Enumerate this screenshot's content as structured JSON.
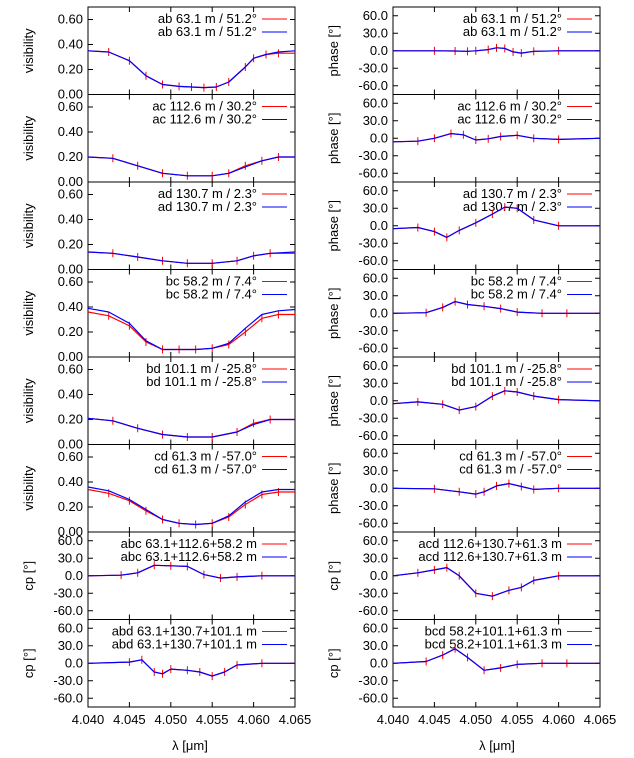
{
  "x_axis": {
    "label": "λ [μm]",
    "min": 4.04,
    "max": 4.065,
    "ticks": [
      "4.040",
      "4.045",
      "4.050",
      "4.055",
      "4.060",
      "4.065"
    ]
  },
  "y_axes": {
    "visibility": {
      "label": "visibility",
      "min": 0,
      "max": 0.7,
      "ticks": [
        "0.00",
        "0.20",
        "0.40",
        "0.60"
      ]
    },
    "phase": {
      "label": "phase [°]",
      "min": -75,
      "max": 75,
      "ticks": [
        "-60.0",
        "-30.0",
        "0.0",
        "30.0",
        "60.0"
      ]
    },
    "cp": {
      "label": "cp [°]",
      "min": -75,
      "max": 75,
      "ticks": [
        "-60.0",
        "-30.0",
        "0.0",
        "30.0",
        "60.0"
      ]
    }
  },
  "colors": {
    "observed": "#ff0000",
    "model": "#0000ff"
  },
  "chart_data": [
    {
      "type": "line",
      "panel": "vis-ab",
      "y_axis": "visibility",
      "legend": [
        "ab 63.1 m / 51.2°",
        "ab 63.1 m / 51.2°"
      ],
      "x": [
        4.04,
        4.0425,
        4.045,
        4.047,
        4.049,
        4.051,
        4.0525,
        4.054,
        4.0555,
        4.057,
        4.059,
        4.06,
        4.0615,
        4.063,
        4.065
      ],
      "series": [
        {
          "values": [
            0.35,
            0.34,
            0.27,
            0.15,
            0.08,
            0.065,
            0.06,
            0.055,
            0.06,
            0.1,
            0.22,
            0.29,
            0.32,
            0.33,
            0.33
          ]
        },
        {
          "values": [
            0.35,
            0.34,
            0.27,
            0.15,
            0.08,
            0.065,
            0.06,
            0.055,
            0.06,
            0.1,
            0.22,
            0.29,
            0.32,
            0.34,
            0.35
          ]
        }
      ]
    },
    {
      "type": "line",
      "panel": "phase-ab",
      "y_axis": "phase",
      "legend": [
        "ab 63.1 m / 51.2°",
        "ab 63.1 m / 51.2°"
      ],
      "x": [
        4.04,
        4.045,
        4.0475,
        4.049,
        4.05,
        4.0515,
        4.0525,
        4.0535,
        4.0545,
        4.0555,
        4.057,
        4.06,
        4.065
      ],
      "series": [
        {
          "values": [
            0,
            0,
            -0.5,
            -1,
            0,
            2,
            5,
            4,
            -2,
            -4,
            -1,
            0,
            0
          ]
        },
        {
          "values": [
            0,
            0,
            -0.5,
            -1,
            0,
            2,
            5,
            4,
            -2,
            -4,
            -1,
            0,
            0
          ]
        }
      ]
    },
    {
      "type": "line",
      "panel": "vis-ac",
      "y_axis": "visibility",
      "legend": [
        "ac 112.6 m / 30.2°",
        "ac 112.6 m / 30.2°"
      ],
      "x": [
        4.04,
        4.043,
        4.046,
        4.049,
        4.052,
        4.055,
        4.057,
        4.059,
        4.061,
        4.063,
        4.065
      ],
      "series": [
        {
          "values": [
            0.2,
            0.19,
            0.13,
            0.07,
            0.05,
            0.05,
            0.07,
            0.13,
            0.17,
            0.2,
            0.2
          ]
        },
        {
          "values": [
            0.2,
            0.19,
            0.13,
            0.07,
            0.05,
            0.05,
            0.07,
            0.12,
            0.17,
            0.2,
            0.2
          ]
        }
      ]
    },
    {
      "type": "line",
      "panel": "phase-ac",
      "y_axis": "phase",
      "legend": [
        "ac 112.6 m / 30.2°",
        "ac 112.6 m / 30.2°"
      ],
      "x": [
        4.04,
        4.043,
        4.045,
        4.047,
        4.0485,
        4.05,
        4.0515,
        4.053,
        4.055,
        4.057,
        4.06,
        4.065
      ],
      "series": [
        {
          "values": [
            -6,
            -5,
            0,
            8,
            6,
            -3,
            -1,
            3,
            5,
            0,
            -2,
            0
          ]
        },
        {
          "values": [
            -6,
            -5,
            0,
            8,
            6,
            -3,
            -1,
            3,
            5,
            0,
            -2,
            0
          ]
        }
      ]
    },
    {
      "type": "line",
      "panel": "vis-ad",
      "y_axis": "visibility",
      "legend": [
        "ad 130.7 m / 2.3°",
        "ad 130.7 m / 2.3°"
      ],
      "x": [
        4.04,
        4.043,
        4.046,
        4.049,
        4.052,
        4.055,
        4.058,
        4.06,
        4.062,
        4.065
      ],
      "series": [
        {
          "values": [
            0.14,
            0.13,
            0.1,
            0.07,
            0.05,
            0.05,
            0.07,
            0.11,
            0.13,
            0.13
          ]
        },
        {
          "values": [
            0.14,
            0.13,
            0.1,
            0.07,
            0.05,
            0.05,
            0.07,
            0.11,
            0.13,
            0.14
          ]
        }
      ]
    },
    {
      "type": "line",
      "panel": "phase-ad",
      "y_axis": "phase",
      "legend": [
        "ad 130.7 m / 2.3°",
        "ad 130.7 m / 2.3°"
      ],
      "x": [
        4.04,
        4.043,
        4.045,
        4.0465,
        4.048,
        4.05,
        4.052,
        4.0535,
        4.055,
        4.057,
        4.06,
        4.065
      ],
      "series": [
        {
          "values": [
            -5,
            -3,
            -10,
            -20,
            -8,
            5,
            20,
            32,
            30,
            10,
            0,
            0
          ]
        },
        {
          "values": [
            -5,
            -3,
            -10,
            -20,
            -8,
            5,
            20,
            32,
            30,
            10,
            0,
            0
          ]
        }
      ]
    },
    {
      "type": "line",
      "panel": "vis-bc",
      "y_axis": "visibility",
      "legend": [
        "bc 58.2 m / 7.4°",
        "bc 58.2 m / 7.4°"
      ],
      "x": [
        4.04,
        4.0425,
        4.045,
        4.047,
        4.049,
        4.051,
        4.053,
        4.055,
        4.057,
        4.059,
        4.061,
        4.063,
        4.065
      ],
      "series": [
        {
          "values": [
            0.36,
            0.33,
            0.25,
            0.12,
            0.06,
            0.06,
            0.06,
            0.07,
            0.1,
            0.2,
            0.31,
            0.34,
            0.34
          ]
        },
        {
          "values": [
            0.39,
            0.36,
            0.27,
            0.13,
            0.06,
            0.06,
            0.06,
            0.07,
            0.11,
            0.23,
            0.34,
            0.37,
            0.38
          ]
        }
      ]
    },
    {
      "type": "line",
      "panel": "phase-bc",
      "y_axis": "phase",
      "legend": [
        "bc 58.2 m / 7.4°",
        "bc 58.2 m / 7.4°"
      ],
      "x": [
        4.04,
        4.044,
        4.046,
        4.0475,
        4.049,
        4.051,
        4.053,
        4.055,
        4.058,
        4.061,
        4.065
      ],
      "series": [
        {
          "values": [
            0,
            1,
            10,
            20,
            15,
            12,
            8,
            2,
            0,
            0,
            0
          ]
        },
        {
          "values": [
            0,
            1,
            10,
            20,
            15,
            12,
            8,
            2,
            0,
            0,
            0
          ]
        }
      ]
    },
    {
      "type": "line",
      "panel": "vis-bd",
      "y_axis": "visibility",
      "legend": [
        "bd 101.1 m / -25.8°",
        "bd 101.1 m / -25.8°"
      ],
      "x": [
        4.04,
        4.043,
        4.046,
        4.049,
        4.052,
        4.055,
        4.058,
        4.06,
        4.062,
        4.065
      ],
      "series": [
        {
          "values": [
            0.21,
            0.19,
            0.13,
            0.08,
            0.06,
            0.06,
            0.1,
            0.17,
            0.2,
            0.2
          ]
        },
        {
          "values": [
            0.21,
            0.19,
            0.13,
            0.08,
            0.06,
            0.06,
            0.1,
            0.16,
            0.2,
            0.2
          ]
        }
      ]
    },
    {
      "type": "line",
      "panel": "phase-bd",
      "y_axis": "phase",
      "legend": [
        "bd 101.1 m / -25.8°",
        "bd 101.1 m / -25.8°"
      ],
      "x": [
        4.04,
        4.043,
        4.046,
        4.048,
        4.05,
        4.052,
        4.0535,
        4.055,
        4.057,
        4.06,
        4.065
      ],
      "series": [
        {
          "values": [
            -5,
            -2,
            -6,
            -16,
            -10,
            8,
            17,
            15,
            8,
            2,
            0
          ]
        },
        {
          "values": [
            -5,
            -2,
            -6,
            -16,
            -10,
            8,
            17,
            15,
            8,
            2,
            0
          ]
        }
      ]
    },
    {
      "type": "line",
      "panel": "vis-cd",
      "y_axis": "visibility",
      "legend": [
        "cd 61.3 m / -57.0°",
        "cd 61.3 m / -57.0°"
      ],
      "x": [
        4.04,
        4.0425,
        4.045,
        4.047,
        4.049,
        4.051,
        4.053,
        4.055,
        4.057,
        4.059,
        4.061,
        4.063,
        4.065
      ],
      "series": [
        {
          "values": [
            0.34,
            0.31,
            0.25,
            0.17,
            0.1,
            0.07,
            0.06,
            0.07,
            0.12,
            0.22,
            0.3,
            0.32,
            0.32
          ]
        },
        {
          "values": [
            0.36,
            0.33,
            0.26,
            0.18,
            0.1,
            0.07,
            0.06,
            0.07,
            0.13,
            0.24,
            0.32,
            0.34,
            0.34
          ]
        }
      ]
    },
    {
      "type": "line",
      "panel": "phase-cd",
      "y_axis": "phase",
      "legend": [
        "cd 61.3 m / -57.0°",
        "cd 61.3 m / -57.0°"
      ],
      "x": [
        4.04,
        4.045,
        4.048,
        4.05,
        4.051,
        4.0525,
        4.054,
        4.0555,
        4.057,
        4.06,
        4.065
      ],
      "series": [
        {
          "values": [
            0,
            -1,
            -6,
            -10,
            -6,
            4,
            8,
            3,
            -2,
            0,
            0
          ]
        },
        {
          "values": [
            0,
            -1,
            -6,
            -10,
            -6,
            4,
            8,
            3,
            -2,
            0,
            0
          ]
        }
      ]
    },
    {
      "type": "line",
      "panel": "cp-abc",
      "y_axis": "cp",
      "legend": [
        "abc 63.1+112.6+58.2 m",
        "abc 63.1+112.6+58.2 m"
      ],
      "x": [
        4.04,
        4.044,
        4.046,
        4.048,
        4.05,
        4.052,
        4.054,
        4.056,
        4.058,
        4.061,
        4.065
      ],
      "series": [
        {
          "values": [
            0,
            1,
            5,
            18,
            17,
            16,
            2,
            -4,
            -2,
            0,
            0
          ]
        },
        {
          "values": [
            0,
            1,
            5,
            18,
            17,
            16,
            2,
            -4,
            -2,
            0,
            0
          ]
        }
      ]
    },
    {
      "type": "line",
      "panel": "cp-acd",
      "y_axis": "cp",
      "legend": [
        "acd 112.6+130.7+61.3 m",
        "acd 112.6+130.7+61.3 m"
      ],
      "x": [
        4.04,
        4.043,
        4.045,
        4.0465,
        4.048,
        4.05,
        4.052,
        4.054,
        4.0555,
        4.057,
        4.06,
        4.065
      ],
      "series": [
        {
          "values": [
            0,
            5,
            10,
            14,
            0,
            -30,
            -35,
            -25,
            -20,
            -8,
            0,
            0
          ]
        },
        {
          "values": [
            0,
            5,
            10,
            14,
            0,
            -30,
            -35,
            -25,
            -20,
            -8,
            0,
            0
          ]
        }
      ]
    },
    {
      "type": "line",
      "panel": "cp-abd",
      "y_axis": "cp",
      "legend": [
        "abd 63.1+130.7+101.1 m",
        "abd 63.1+130.7+101.1 m"
      ],
      "x": [
        4.04,
        4.045,
        4.0465,
        4.048,
        4.049,
        4.05,
        4.052,
        4.0535,
        4.055,
        4.0565,
        4.058,
        4.061,
        4.065
      ],
      "series": [
        {
          "values": [
            0,
            2,
            6,
            -15,
            -18,
            -10,
            -12,
            -15,
            -22,
            -15,
            -3,
            0,
            0
          ]
        },
        {
          "values": [
            0,
            2,
            6,
            -15,
            -18,
            -10,
            -12,
            -15,
            -22,
            -15,
            -3,
            0,
            0
          ]
        }
      ]
    },
    {
      "type": "line",
      "panel": "cp-bcd",
      "y_axis": "cp",
      "legend": [
        "bcd 58.2+101.1+61.3 m",
        "bcd 58.2+101.1+61.3 m"
      ],
      "x": [
        4.04,
        4.044,
        4.046,
        4.0475,
        4.049,
        4.051,
        4.053,
        4.055,
        4.058,
        4.061,
        4.065
      ],
      "series": [
        {
          "values": [
            0,
            3,
            14,
            25,
            10,
            -12,
            -8,
            -2,
            0,
            0,
            0
          ]
        },
        {
          "values": [
            0,
            3,
            14,
            25,
            10,
            -12,
            -8,
            -2,
            0,
            0,
            0
          ]
        }
      ]
    }
  ]
}
